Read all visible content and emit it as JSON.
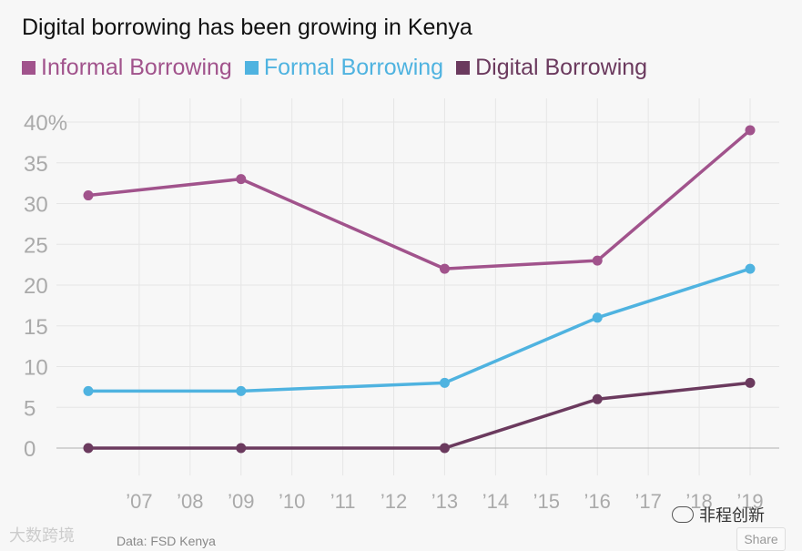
{
  "chart_data": {
    "type": "line",
    "title": "Digital borrowing has been growing in Kenya",
    "xlabel": "",
    "ylabel": "",
    "x": [
      2006,
      2009,
      2013,
      2016,
      2019
    ],
    "xlim": [
      2006,
      2019
    ],
    "ylim": [
      0,
      40
    ],
    "yticks": [
      0,
      5,
      10,
      15,
      20,
      25,
      30,
      35,
      40
    ],
    "ytick_labels": [
      "0",
      "5",
      "10",
      "15",
      "20",
      "25",
      "30",
      "35",
      "40%"
    ],
    "xticks": [
      2007,
      2008,
      2009,
      2010,
      2011,
      2012,
      2013,
      2014,
      2015,
      2016,
      2017,
      2018,
      2019
    ],
    "xtick_labels": [
      "’07",
      "’08",
      "’09",
      "’10",
      "’11",
      "’12",
      "’13",
      "’14",
      "’15",
      "’16",
      "’17",
      "’18",
      "’19"
    ],
    "grid": true,
    "legend_position": "top",
    "series": [
      {
        "name": "Informal Borrowing",
        "color": "#a1538c",
        "values": [
          31,
          33,
          22,
          23,
          39
        ]
      },
      {
        "name": "Formal Borrowing",
        "color": "#4fb3e0",
        "values": [
          7,
          7,
          8,
          16,
          22
        ]
      },
      {
        "name": "Digital Borrowing",
        "color": "#6b3a5e",
        "values": [
          0,
          0,
          0,
          6,
          8
        ]
      }
    ]
  },
  "footer": {
    "source": "Data: FSD Kenya",
    "share_label": "Share"
  },
  "watermarks": {
    "left": "大数跨境",
    "right": "非程创新"
  }
}
